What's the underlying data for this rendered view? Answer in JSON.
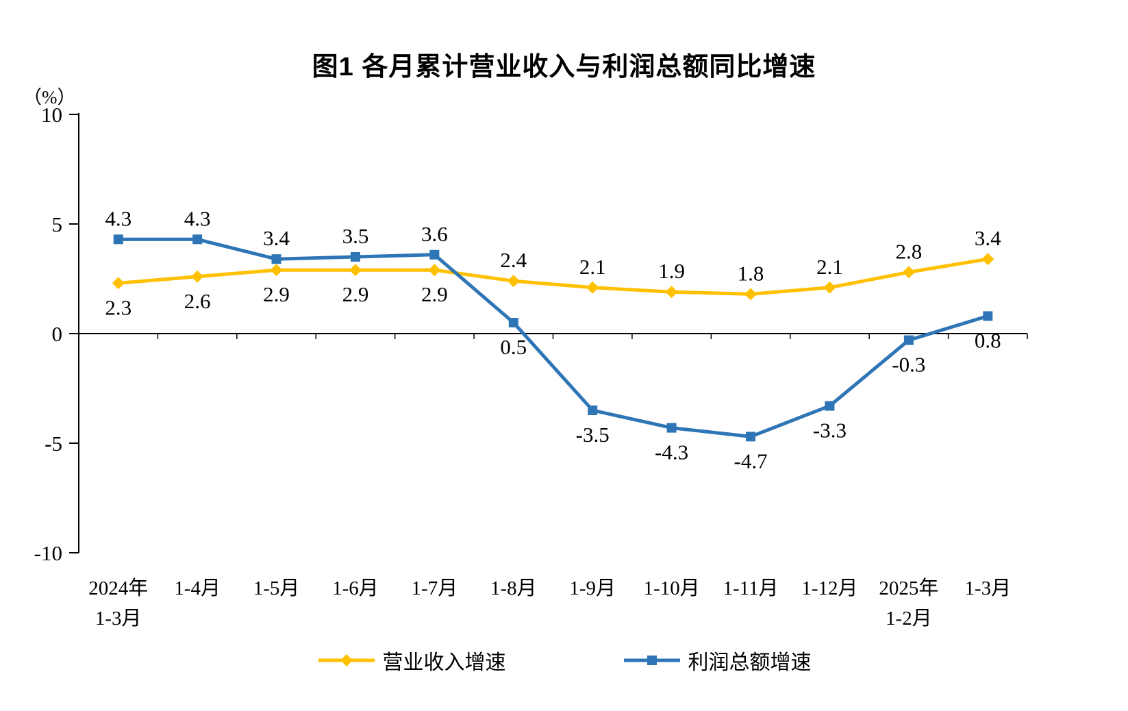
{
  "chart_data": {
    "type": "line",
    "title": "图1  各月累计营业收入与利润总额同比增速",
    "unit_label": "（%）",
    "categories": [
      [
        "2024年",
        "1-3月"
      ],
      [
        "1-4月"
      ],
      [
        "1-5月"
      ],
      [
        "1-6月"
      ],
      [
        "1-7月"
      ],
      [
        "1-8月"
      ],
      [
        "1-9月"
      ],
      [
        "1-10月"
      ],
      [
        "1-11月"
      ],
      [
        "1-12月"
      ],
      [
        "2025年",
        "1-2月"
      ],
      [
        "1-3月"
      ]
    ],
    "y_ticks": [
      -10,
      -5,
      0,
      5,
      10
    ],
    "ylim": [
      -10,
      10
    ],
    "grid": "off",
    "legend_position": "bottom",
    "series": [
      {
        "name": "营业收入增速",
        "color": "#FFC000",
        "marker": "diamond",
        "values": [
          2.3,
          2.6,
          2.9,
          2.9,
          2.9,
          2.4,
          2.1,
          1.9,
          1.8,
          2.1,
          2.8,
          3.4
        ],
        "label_positions": [
          "below",
          "below",
          "below",
          "below",
          "below",
          "above",
          "above",
          "above",
          "above",
          "above",
          "above",
          "above"
        ]
      },
      {
        "name": "利润总额增速",
        "color": "#2E75B6",
        "marker": "square",
        "values": [
          4.3,
          4.3,
          3.4,
          3.5,
          3.6,
          0.5,
          -3.5,
          -4.3,
          -4.7,
          -3.3,
          -0.3,
          0.8
        ],
        "label_positions": [
          "above",
          "above",
          "above",
          "above",
          "above",
          "below",
          "below",
          "below",
          "below",
          "below",
          "below",
          "below"
        ]
      }
    ]
  }
}
